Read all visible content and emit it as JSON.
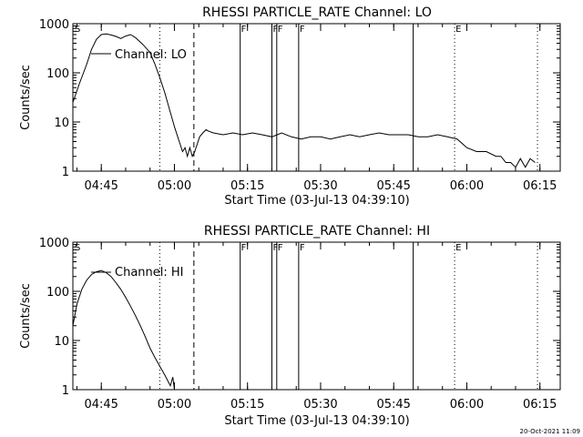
{
  "chart_data": [
    {
      "type": "line",
      "title": "RHESSI PARTICLE_RATE Channel: LO",
      "xlabel": "Start Time (03-Jul-13 04:39:10)",
      "ylabel": "Counts/sec",
      "yscale": "log",
      "ylim": [
        1,
        1000
      ],
      "xlim": [
        "04:39:10",
        "06:19:10"
      ],
      "x_ticks": [
        "04:45",
        "05:00",
        "05:15",
        "05:30",
        "05:45",
        "06:00",
        "06:15"
      ],
      "y_ticks": [
        "1",
        "10",
        "100",
        "1000"
      ],
      "legend": {
        "entries": [
          "Channel: LO"
        ],
        "placement": "top-left"
      },
      "series": [
        {
          "name": "Channel: LO",
          "x": [
            "04:39:10",
            "04:40:30",
            "04:42:00",
            "04:43:00",
            "04:44:00",
            "04:45:00",
            "04:46:00",
            "04:47:00",
            "04:48:00",
            "04:49:00",
            "04:50:00",
            "04:51:00",
            "04:52:00",
            "04:53:30",
            "04:55:00",
            "04:56:00",
            "04:57:00",
            "04:58:00",
            "04:59:00",
            "05:00:00",
            "05:01:00",
            "05:01:40",
            "05:02:10",
            "05:02:40",
            "05:03:10",
            "05:03:40",
            "05:04:10",
            "05:04:40",
            "05:05:10",
            "05:05:50",
            "05:06:30",
            "05:07:00",
            "05:08:00",
            "05:10:00",
            "05:12:00",
            "05:14:00",
            "05:16:00",
            "05:18:00",
            "05:20:00",
            "05:22:00",
            "05:24:00",
            "05:26:00",
            "05:28:00",
            "05:30:00",
            "05:32:00",
            "05:34:00",
            "05:36:00",
            "05:38:00",
            "05:40:00",
            "05:42:00",
            "05:44:00",
            "05:46:00",
            "05:48:00",
            "05:50:00",
            "05:52:00",
            "05:54:00",
            "05:56:00",
            "05:58:00",
            "06:00:00",
            "06:02:00",
            "06:04:00",
            "06:06:00",
            "06:07:00",
            "06:08:00",
            "06:09:00",
            "06:10:00",
            "06:11:00",
            "06:12:00",
            "06:13:00",
            "06:14:00"
          ],
          "y": [
            25,
            60,
            150,
            300,
            480,
            600,
            620,
            590,
            550,
            500,
            560,
            600,
            520,
            380,
            260,
            150,
            80,
            40,
            18,
            8,
            4,
            2.5,
            3,
            2,
            3,
            2,
            2.5,
            3.5,
            5,
            6,
            7,
            6.5,
            6,
            5.5,
            6,
            5.5,
            6,
            5.5,
            5,
            6,
            5,
            4.5,
            5,
            5,
            4.5,
            5,
            5.5,
            5,
            5.5,
            6,
            5.5,
            5.5,
            5.5,
            5,
            5,
            5.5,
            5,
            4.5,
            3,
            2.5,
            2.5,
            2,
            2,
            1.5,
            1.5,
            1.2,
            1.8,
            1.2,
            1.8,
            1.5
          ]
        }
      ],
      "vertical_markers": [
        {
          "time": "04:57:00",
          "style": "dotted"
        },
        {
          "time": "05:04:00",
          "style": "dashed"
        },
        {
          "time": "05:13:30",
          "style": "solid",
          "label": "F"
        },
        {
          "time": "05:20:00",
          "style": "solid",
          "label": "F"
        },
        {
          "time": "05:21:00",
          "style": "solid",
          "label": "F"
        },
        {
          "time": "05:25:30",
          "style": "solid",
          "label": "F"
        },
        {
          "time": "05:49:00",
          "style": "solid"
        },
        {
          "time": "05:57:30",
          "style": "dotted",
          "label": "E"
        },
        {
          "time": "06:14:30",
          "style": "dotted"
        }
      ],
      "start_marker": "S"
    },
    {
      "type": "line",
      "title": "RHESSI PARTICLE_RATE Channel: HI",
      "xlabel": "Start Time (03-Jul-13 04:39:10)",
      "ylabel": "Counts/sec",
      "yscale": "log",
      "ylim": [
        1,
        1000
      ],
      "xlim": [
        "04:39:10",
        "06:19:10"
      ],
      "x_ticks": [
        "04:45",
        "05:00",
        "05:15",
        "05:30",
        "05:45",
        "06:00",
        "06:15"
      ],
      "y_ticks": [
        "1",
        "10",
        "100",
        "1000"
      ],
      "legend": {
        "entries": [
          "Channel: HI"
        ],
        "placement": "top-left"
      },
      "series": [
        {
          "name": "Channel: HI",
          "x": [
            "04:39:10",
            "04:40:00",
            "04:41:00",
            "04:42:00",
            "04:43:00",
            "04:44:00",
            "04:45:00",
            "04:46:00",
            "04:47:00",
            "04:48:00",
            "04:49:00",
            "04:50:00",
            "04:51:00",
            "04:52:00",
            "04:53:00",
            "04:54:00",
            "04:55:00",
            "04:56:00",
            "04:57:00",
            "04:58:00",
            "04:58:40",
            "04:59:10",
            "04:59:40",
            "05:00:00"
          ],
          "y": [
            20,
            55,
            110,
            170,
            220,
            250,
            265,
            240,
            200,
            150,
            110,
            75,
            50,
            32,
            20,
            12,
            7,
            4.5,
            3,
            2,
            1.5,
            1.2,
            1.8,
            1
          ]
        }
      ],
      "vertical_markers": [
        {
          "time": "04:57:00",
          "style": "dotted"
        },
        {
          "time": "05:04:00",
          "style": "dashed"
        },
        {
          "time": "05:13:30",
          "style": "solid",
          "label": "F"
        },
        {
          "time": "05:20:00",
          "style": "solid",
          "label": "F"
        },
        {
          "time": "05:21:00",
          "style": "solid",
          "label": "F"
        },
        {
          "time": "05:25:30",
          "style": "solid",
          "label": "F"
        },
        {
          "time": "05:49:00",
          "style": "solid"
        },
        {
          "time": "05:57:30",
          "style": "dotted",
          "label": "E"
        },
        {
          "time": "06:14:30",
          "style": "dotted"
        }
      ],
      "start_marker": "S"
    }
  ],
  "footer": {
    "timestamp": "20-Oct-2021 11:09"
  }
}
